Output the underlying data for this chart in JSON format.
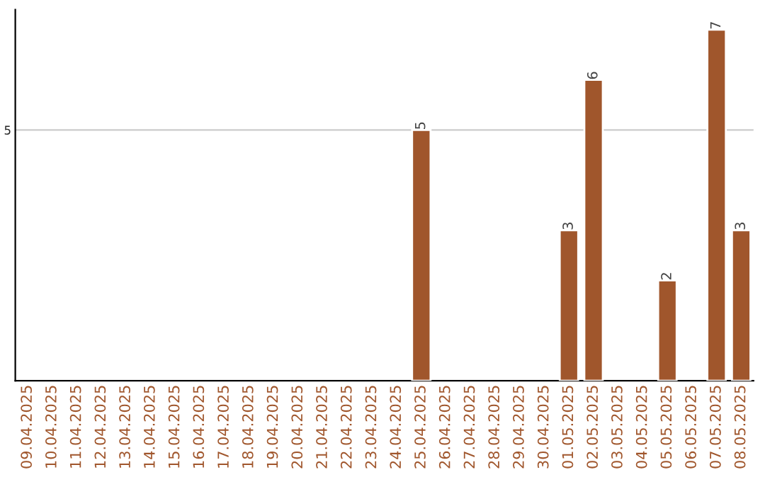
{
  "chart_data": {
    "type": "bar",
    "categories": [
      "09.04.2025",
      "10.04.2025",
      "11.04.2025",
      "12.04.2025",
      "13.04.2025",
      "14.04.2025",
      "15.04.2025",
      "16.04.2025",
      "17.04.2025",
      "18.04.2025",
      "19.04.2025",
      "20.04.2025",
      "21.04.2025",
      "22.04.2025",
      "23.04.2025",
      "24.04.2025",
      "25.04.2025",
      "26.04.2025",
      "27.04.2025",
      "28.04.2025",
      "29.04.2025",
      "30.04.2025",
      "01.05.2025",
      "02.05.2025",
      "03.05.2025",
      "04.05.2025",
      "05.05.2025",
      "06.05.2025",
      "07.05.2025",
      "08.05.2025"
    ],
    "values": [
      null,
      null,
      null,
      null,
      null,
      null,
      null,
      null,
      null,
      null,
      null,
      null,
      null,
      null,
      null,
      null,
      5,
      null,
      null,
      null,
      null,
      null,
      3,
      6,
      null,
      null,
      2,
      null,
      7,
      3
    ],
    "color": "#a0562c",
    "value_labels": [
      null,
      null,
      null,
      null,
      null,
      null,
      null,
      null,
      null,
      null,
      null,
      null,
      null,
      null,
      null,
      null,
      "5",
      null,
      null,
      null,
      null,
      null,
      "3",
      "6",
      null,
      null,
      "2",
      null,
      "7",
      "3"
    ],
    "ylim": [
      0,
      7.4
    ],
    "yticks": [
      5
    ],
    "grid": "y"
  }
}
